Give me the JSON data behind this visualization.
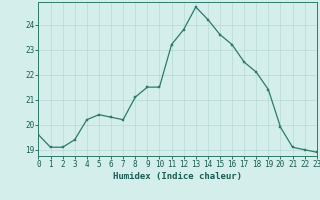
{
  "x": [
    0,
    1,
    2,
    3,
    4,
    5,
    6,
    7,
    8,
    9,
    10,
    11,
    12,
    13,
    14,
    15,
    16,
    17,
    18,
    19,
    20,
    21,
    22,
    23
  ],
  "y": [
    19.6,
    19.1,
    19.1,
    19.4,
    20.2,
    20.4,
    20.3,
    20.2,
    21.1,
    21.5,
    21.5,
    23.2,
    23.8,
    24.7,
    24.2,
    23.6,
    23.2,
    22.5,
    22.1,
    21.4,
    19.9,
    19.1,
    19.0,
    18.9
  ],
  "xlabel": "Humidex (Indice chaleur)",
  "xlim": [
    0,
    23
  ],
  "ylim": [
    18.75,
    24.9
  ],
  "yticks": [
    19,
    20,
    21,
    22,
    23,
    24
  ],
  "xticks": [
    0,
    1,
    2,
    3,
    4,
    5,
    6,
    7,
    8,
    9,
    10,
    11,
    12,
    13,
    14,
    15,
    16,
    17,
    18,
    19,
    20,
    21,
    22,
    23
  ],
  "line_color": "#2d7a6a",
  "marker_color": "#2d7a6a",
  "bg_color": "#d4eeec",
  "grid_color": "#b8d8d4",
  "axis_color": "#2d7a6a",
  "text_color": "#1a5c52",
  "tick_label_fontsize": 5.5,
  "xlabel_fontsize": 6.5
}
